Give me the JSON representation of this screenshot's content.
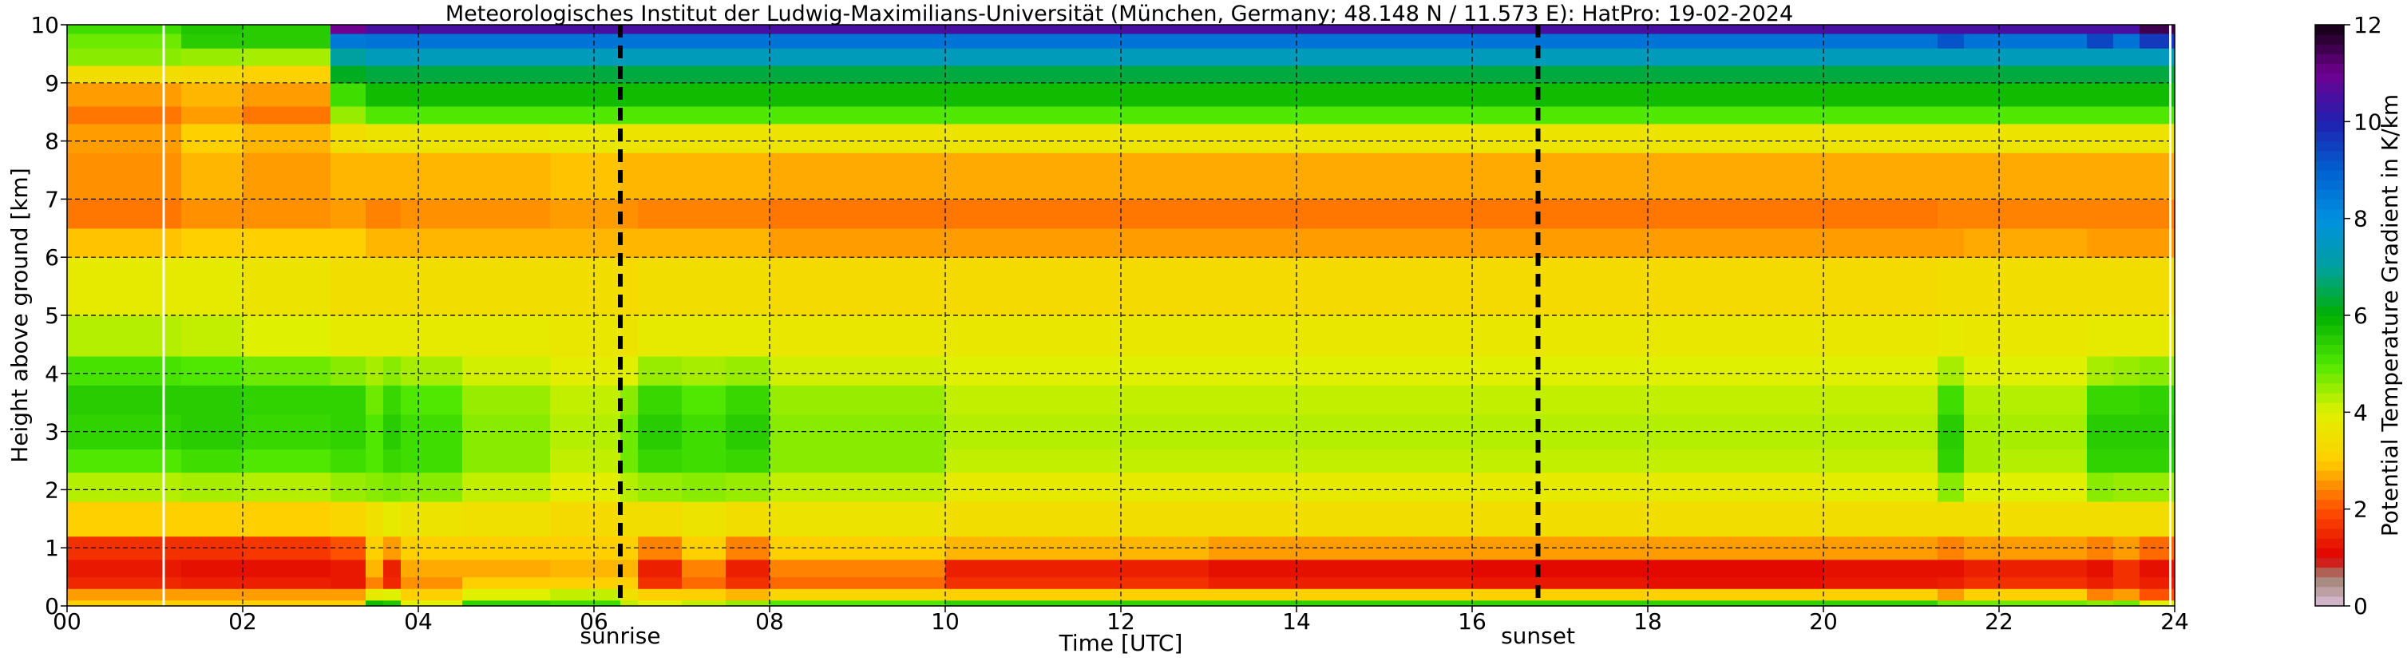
{
  "chart_data": {
    "type": "heatmap",
    "title": "Meteorologisches Institut der Ludwig-Maximilians-Universität (München, Germany; 48.148 N / 11.573 E):    HatPro: 19-02-2024",
    "xlabel": "Time [UTC]",
    "ylabel": "Height above ground [km]",
    "colorbar_label": "Potential Temperature Gradient in K/km",
    "xlim": [
      0,
      24
    ],
    "ylim": [
      0,
      10
    ],
    "clim": [
      0,
      12
    ],
    "x_ticks": [
      0,
      2,
      4,
      6,
      8,
      10,
      12,
      14,
      16,
      18,
      20,
      22,
      24
    ],
    "x_tick_labels": [
      "00",
      "02",
      "04",
      "06",
      "08",
      "10",
      "12",
      "14",
      "16",
      "18",
      "20",
      "22",
      "24"
    ],
    "y_ticks": [
      0,
      1,
      2,
      3,
      4,
      5,
      6,
      7,
      8,
      9,
      10
    ],
    "y_tick_labels": [
      "0",
      "1",
      "2",
      "3",
      "4",
      "5",
      "6",
      "7",
      "8",
      "9",
      "10"
    ],
    "colorbar_ticks": [
      0,
      2,
      4,
      6,
      8,
      10,
      12
    ],
    "colorbar_tick_labels": [
      "0",
      "2",
      "4",
      "6",
      "8",
      "10",
      "12"
    ],
    "grid": true,
    "colormap": [
      {
        "value": 0.0,
        "color": "#d8c0d8"
      },
      {
        "value": 0.6,
        "color": "#a08070"
      },
      {
        "value": 1.0,
        "color": "#e00000"
      },
      {
        "value": 2.0,
        "color": "#ff5000"
      },
      {
        "value": 3.0,
        "color": "#ffd000"
      },
      {
        "value": 4.0,
        "color": "#dff000"
      },
      {
        "value": 5.0,
        "color": "#50e800"
      },
      {
        "value": 6.0,
        "color": "#00b000"
      },
      {
        "value": 7.0,
        "color": "#00a0a0"
      },
      {
        "value": 8.0,
        "color": "#0090e0"
      },
      {
        "value": 9.0,
        "color": "#0060d0"
      },
      {
        "value": 10.0,
        "color": "#2020b0"
      },
      {
        "value": 11.0,
        "color": "#700090"
      },
      {
        "value": 12.0,
        "color": "#100010"
      }
    ],
    "time_breakpoints": [
      0,
      1.1,
      1.3,
      2.0,
      2.6,
      3.0,
      3.4,
      3.6,
      3.8,
      4.5,
      5.5,
      6.3,
      6.5,
      7.0,
      7.5,
      8.0,
      10.0,
      13.0,
      16.0,
      18.0,
      20.0,
      21.3,
      21.6,
      22.0,
      23.0,
      23.3,
      23.6,
      24.0
    ],
    "height_breakpoints": [
      0.0,
      0.1,
      0.3,
      0.5,
      0.8,
      1.2,
      1.8,
      2.3,
      2.7,
      3.3,
      3.8,
      4.3,
      5.0,
      6.0,
      6.5,
      7.0,
      7.8,
      8.3,
      8.6,
      9.0,
      9.3,
      9.6,
      9.85,
      10.0
    ],
    "profiles": [
      [
        3.0,
        2.6,
        1.5,
        1.3,
        1.6,
        3.0,
        4.3,
        5.0,
        5.4,
        5.5,
        5.1,
        4.3,
        3.8,
        2.9,
        2.3,
        2.5,
        2.6,
        2.3,
        2.6,
        3.4,
        4.6,
        4.8,
        5.2,
        5.2
      ],
      [
        3.0,
        2.6,
        1.5,
        1.3,
        1.6,
        3.0,
        4.3,
        5.0,
        5.4,
        5.5,
        5.1,
        4.3,
        3.8,
        2.9,
        2.3,
        2.5,
        2.6,
        2.3,
        2.6,
        3.4,
        4.6,
        4.8,
        5.2,
        5.2
      ],
      [
        3.0,
        2.6,
        1.4,
        1.2,
        1.6,
        3.0,
        4.4,
        5.2,
        5.5,
        5.5,
        5.0,
        4.2,
        3.8,
        3.0,
        2.5,
        2.8,
        3.0,
        2.6,
        2.8,
        3.3,
        4.5,
        5.5,
        5.6,
        5.6
      ],
      [
        3.0,
        2.6,
        1.4,
        1.2,
        1.7,
        3.0,
        4.3,
        5.0,
        5.3,
        5.4,
        4.8,
        4.0,
        3.6,
        3.0,
        2.5,
        2.6,
        2.8,
        2.3,
        2.6,
        3.1,
        4.4,
        5.5,
        5.5,
        5.5
      ],
      [
        3.0,
        2.6,
        1.4,
        1.2,
        1.7,
        3.0,
        4.3,
        5.0,
        5.3,
        5.4,
        4.8,
        4.0,
        3.6,
        3.0,
        2.5,
        2.6,
        2.8,
        2.3,
        2.6,
        3.1,
        4.4,
        5.5,
        5.5,
        5.5
      ],
      [
        3.0,
        2.6,
        1.3,
        1.3,
        2.0,
        3.2,
        4.5,
        5.2,
        5.4,
        5.4,
        4.6,
        3.8,
        3.4,
        3.0,
        2.6,
        2.8,
        3.4,
        4.5,
        5.2,
        6.2,
        7.0,
        8.5,
        11.0,
        11.6
      ],
      [
        5.8,
        3.8,
        2.4,
        2.8,
        3.0,
        3.5,
        4.6,
        5.0,
        5.0,
        4.8,
        4.4,
        3.8,
        3.4,
        2.8,
        2.4,
        2.8,
        3.6,
        5.0,
        5.8,
        6.4,
        7.4,
        8.6,
        10.5,
        11.6
      ],
      [
        5.6,
        4.0,
        1.5,
        1.4,
        2.6,
        3.8,
        4.7,
        5.3,
        5.5,
        5.3,
        4.6,
        3.8,
        3.4,
        2.8,
        2.4,
        2.8,
        3.6,
        5.0,
        5.8,
        6.4,
        7.4,
        8.6,
        10.5,
        11.6
      ],
      [
        4.0,
        3.0,
        2.5,
        2.7,
        3.0,
        3.6,
        4.6,
        5.2,
        5.2,
        5.0,
        4.4,
        3.8,
        3.4,
        2.8,
        2.5,
        2.8,
        3.6,
        5.0,
        5.8,
        6.4,
        7.4,
        8.6,
        10.5,
        11.6
      ],
      [
        5.4,
        4.0,
        3.0,
        2.7,
        3.0,
        3.5,
        4.2,
        4.6,
        4.6,
        4.5,
        4.1,
        3.8,
        3.4,
        2.8,
        2.5,
        2.8,
        3.6,
        5.0,
        5.8,
        6.4,
        7.4,
        8.6,
        10.5,
        11.6
      ],
      [
        5.2,
        4.2,
        3.0,
        2.8,
        3.0,
        3.3,
        3.9,
        4.2,
        4.3,
        4.2,
        3.9,
        3.7,
        3.4,
        2.8,
        2.6,
        2.9,
        3.7,
        5.0,
        5.8,
        6.4,
        7.4,
        8.6,
        10.5,
        11.6
      ],
      [
        4.2,
        3.5,
        3.0,
        2.8,
        3.0,
        3.4,
        4.3,
        4.8,
        4.8,
        4.6,
        4.0,
        3.6,
        3.3,
        2.8,
        2.5,
        2.8,
        3.6,
        5.0,
        5.8,
        6.4,
        7.4,
        8.6,
        10.5,
        11.6
      ],
      [
        4.0,
        3.0,
        1.6,
        1.4,
        2.4,
        3.4,
        4.5,
        5.3,
        5.5,
        5.3,
        4.5,
        3.8,
        3.4,
        2.8,
        2.4,
        2.8,
        3.6,
        5.0,
        5.8,
        6.4,
        7.4,
        8.6,
        10.5,
        11.6
      ],
      [
        4.2,
        3.0,
        2.2,
        2.4,
        3.0,
        3.6,
        4.6,
        5.2,
        5.2,
        5.0,
        4.4,
        3.8,
        3.4,
        2.8,
        2.4,
        2.8,
        3.6,
        5.0,
        5.8,
        6.4,
        7.4,
        8.6,
        10.5,
        11.6
      ],
      [
        4.5,
        2.8,
        1.6,
        1.4,
        2.4,
        3.4,
        4.5,
        5.3,
        5.5,
        5.3,
        4.5,
        3.8,
        3.4,
        2.8,
        2.4,
        2.8,
        3.6,
        5.0,
        5.8,
        6.4,
        7.4,
        8.6,
        10.5,
        11.6
      ],
      [
        5.0,
        3.2,
        2.2,
        2.4,
        3.0,
        3.6,
        4.2,
        4.6,
        4.6,
        4.5,
        4.1,
        3.7,
        3.3,
        2.6,
        2.3,
        2.7,
        3.6,
        5.0,
        5.8,
        6.4,
        7.4,
        8.6,
        10.5,
        11.6
      ],
      [
        5.4,
        3.0,
        1.6,
        1.4,
        2.8,
        3.4,
        3.8,
        4.2,
        4.3,
        4.2,
        4.0,
        3.7,
        3.3,
        2.6,
        2.3,
        2.7,
        3.6,
        5.0,
        5.8,
        6.4,
        7.4,
        8.6,
        10.5,
        11.6
      ],
      [
        5.4,
        3.0,
        1.4,
        1.2,
        2.6,
        3.4,
        3.8,
        4.2,
        4.3,
        4.2,
        4.0,
        3.7,
        3.3,
        2.6,
        2.3,
        2.7,
        3.6,
        5.0,
        5.8,
        6.4,
        7.4,
        8.6,
        10.5,
        11.6
      ],
      [
        5.4,
        3.0,
        1.3,
        1.1,
        2.6,
        3.4,
        3.8,
        4.2,
        4.3,
        4.2,
        4.0,
        3.7,
        3.3,
        2.6,
        2.3,
        2.7,
        3.6,
        5.0,
        5.8,
        6.4,
        7.4,
        8.6,
        10.5,
        11.6
      ],
      [
        5.4,
        3.0,
        1.2,
        1.1,
        2.6,
        3.4,
        3.8,
        4.2,
        4.3,
        4.2,
        4.0,
        3.7,
        3.3,
        2.6,
        2.3,
        2.7,
        3.6,
        5.0,
        5.8,
        6.4,
        7.4,
        8.6,
        10.5,
        11.6
      ],
      [
        5.4,
        3.0,
        1.3,
        1.2,
        2.6,
        3.4,
        3.9,
        4.2,
        4.3,
        4.2,
        4.0,
        3.7,
        3.3,
        2.6,
        2.3,
        2.7,
        3.6,
        5.0,
        5.8,
        6.4,
        7.4,
        8.6,
        10.5,
        11.6
      ],
      [
        4.8,
        2.6,
        1.4,
        1.2,
        2.4,
        3.4,
        4.6,
        5.4,
        5.5,
        5.2,
        4.4,
        3.8,
        3.4,
        2.6,
        2.4,
        2.7,
        3.6,
        5.0,
        5.8,
        6.4,
        7.4,
        9.2,
        10.5,
        11.6
      ],
      [
        4.8,
        3.0,
        1.6,
        1.4,
        2.6,
        3.4,
        4.0,
        4.4,
        4.4,
        4.3,
        4.0,
        3.7,
        3.4,
        2.7,
        2.4,
        2.7,
        3.6,
        5.0,
        5.8,
        6.4,
        7.4,
        8.6,
        10.5,
        11.6
      ],
      [
        4.8,
        3.0,
        1.6,
        1.4,
        2.6,
        3.4,
        4.0,
        4.3,
        4.4,
        4.3,
        4.0,
        3.7,
        3.4,
        2.7,
        2.4,
        2.7,
        3.6,
        5.0,
        5.8,
        6.4,
        7.4,
        8.6,
        10.5,
        11.6
      ],
      [
        4.6,
        2.4,
        1.4,
        1.2,
        2.4,
        3.4,
        4.6,
        5.4,
        5.5,
        5.3,
        4.4,
        3.8,
        3.4,
        2.6,
        2.4,
        2.7,
        3.6,
        5.0,
        5.8,
        6.4,
        7.4,
        9.4,
        10.5,
        11.6
      ],
      [
        4.8,
        2.6,
        1.6,
        1.6,
        2.6,
        3.4,
        4.5,
        5.4,
        5.5,
        5.3,
        4.5,
        3.8,
        3.4,
        2.6,
        2.4,
        2.7,
        3.6,
        5.0,
        5.8,
        6.4,
        7.4,
        8.6,
        10.5,
        11.6
      ],
      [
        4.0,
        2.0,
        1.4,
        1.2,
        2.2,
        3.4,
        4.5,
        5.4,
        5.5,
        5.4,
        4.6,
        3.8,
        3.4,
        2.6,
        2.4,
        2.7,
        3.6,
        5.0,
        5.8,
        6.4,
        7.4,
        9.6,
        11.5,
        11.8
      ]
    ],
    "dashed_markers": [
      {
        "x": 6.3,
        "label": "sunrise"
      },
      {
        "x": 16.75,
        "label": "sunset"
      }
    ],
    "white_markers": [
      1.1,
      23.95
    ]
  }
}
